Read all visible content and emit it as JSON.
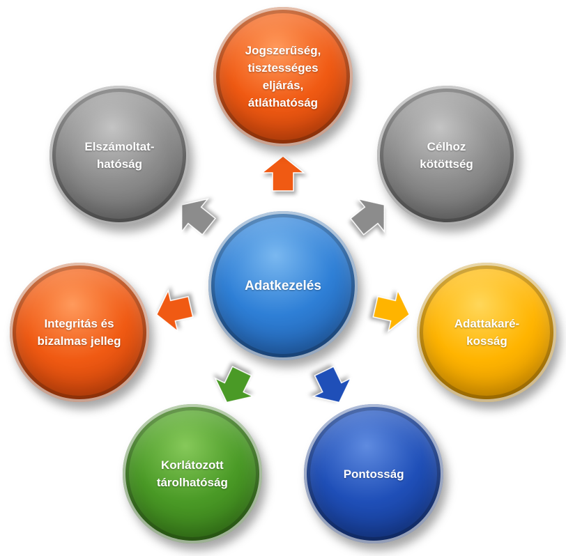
{
  "center": {
    "label": "Adatkezelés",
    "color": "#2e7fd6",
    "light": "#7ab8f0",
    "dark": "#1c4f96"
  },
  "principles": [
    {
      "id": "lawfulness",
      "label": "Jogszerűség,\ntisztességes\neljárás,\nátláthatóság",
      "color": "#f05a13",
      "light": "#ff9a5c",
      "dark": "#b83806"
    },
    {
      "id": "purpose",
      "label": "Célhoz\nkötöttség",
      "color": "#8c8c8c",
      "light": "#c4c4c4",
      "dark": "#5a5a5a"
    },
    {
      "id": "minimisation",
      "label": "Adattakaré-\nkosság",
      "color": "#ffb400",
      "light": "#ffd75a",
      "dark": "#d18a00"
    },
    {
      "id": "accuracy",
      "label": "Pontosság",
      "color": "#1f4fb8",
      "light": "#5f8be0",
      "dark": "#102f7a"
    },
    {
      "id": "storage",
      "label": "Korlátozott\ntárolhatóság",
      "color": "#4a9a26",
      "light": "#86c95a",
      "dark": "#2d6a12"
    },
    {
      "id": "integrity",
      "label": "Integritás és\nbizalmas jelleg",
      "color": "#f05a13",
      "light": "#ff9a5c",
      "dark": "#b83806"
    },
    {
      "id": "accountability",
      "label": "Elszámoltat-\nhatóság",
      "color": "#8c8c8c",
      "light": "#c4c4c4",
      "dark": "#5a5a5a"
    }
  ]
}
